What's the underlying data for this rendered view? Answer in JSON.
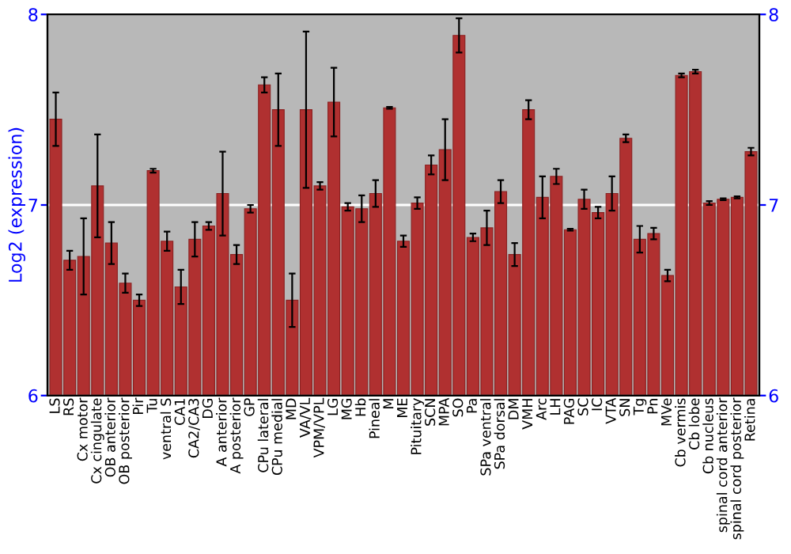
{
  "chart_data": {
    "type": "bar",
    "ylabel": "Log2 (expression)",
    "categories": [
      "LS",
      "RS",
      "Cx motor",
      "Cx cingulate",
      "OB anterior",
      "OB posterior",
      "Pir",
      "Tu",
      "ventral S",
      "CA1",
      "CA2/CA3",
      "DG",
      "A anterior",
      "A posterior",
      "GP",
      "CPu lateral",
      "CPu medial",
      "MD",
      "VA/VL",
      "VPM/VPL",
      "LG",
      "MG",
      "Hb",
      "Pineal",
      "M",
      "ME",
      "Pituitary",
      "SCN",
      "MPA",
      "SO",
      "Pa",
      "SPa ventral",
      "SPa dorsal",
      "DM",
      "VMH",
      "Arc",
      "LH",
      "PAG",
      "SC",
      "IC",
      "VTA",
      "SN",
      "Tg",
      "Pn",
      "MVe",
      "Cb vermis",
      "Cb lobe",
      "Cb nucleus",
      "spinal cord anterior",
      "spinal cord posterior",
      "Retina"
    ],
    "series": [
      {
        "color": "#b03030",
        "values": [
          7.45,
          6.71,
          6.73,
          7.1,
          6.8,
          6.59,
          6.5,
          7.18,
          6.81,
          6.57,
          6.82,
          6.89,
          7.06,
          6.74,
          6.98,
          7.63,
          7.5,
          6.5,
          7.5,
          7.1,
          7.54,
          6.99,
          6.98,
          7.06,
          7.51,
          6.81,
          7.01,
          7.21,
          7.29,
          7.89,
          6.83,
          6.88,
          7.07,
          6.74,
          7.5,
          7.04,
          7.15,
          6.87,
          7.03,
          6.96,
          7.06,
          7.35,
          6.82,
          6.85,
          6.63,
          7.68,
          7.7,
          7.01,
          7.03,
          7.04,
          7.28
        ],
        "errors": [
          0.14,
          0.05,
          0.2,
          0.27,
          0.11,
          0.05,
          0.03,
          0.01,
          0.05,
          0.09,
          0.09,
          0.02,
          0.22,
          0.05,
          0.02,
          0.04,
          0.19,
          0.14,
          0.41,
          0.02,
          0.18,
          0.02,
          0.07,
          0.07,
          0.005,
          0.03,
          0.03,
          0.05,
          0.16,
          0.09,
          0.02,
          0.09,
          0.06,
          0.06,
          0.05,
          0.11,
          0.04,
          0.005,
          0.05,
          0.03,
          0.09,
          0.02,
          0.07,
          0.03,
          0.03,
          0.01,
          0.01,
          0.01,
          0.005,
          0.005,
          0.02
        ]
      }
    ],
    "ylim": [
      6,
      8
    ],
    "yticks": [
      6,
      7,
      8
    ],
    "y2lim": [
      6,
      8
    ],
    "y2ticks": [
      6,
      7,
      8
    ],
    "grid": "y"
  }
}
